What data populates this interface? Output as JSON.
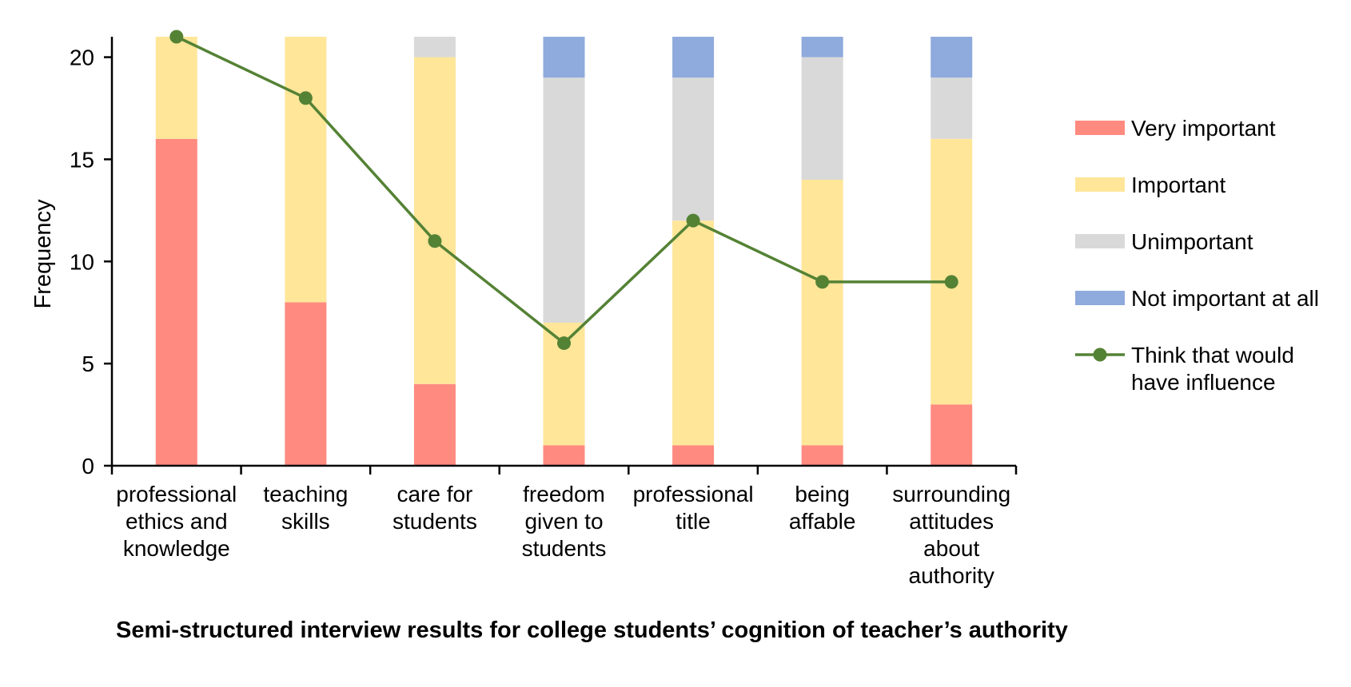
{
  "chart_data": {
    "type": "bar",
    "stacked": true,
    "title": "Semi-structured interview results for college students’ cognition of teacher’s authority",
    "xlabel": "",
    "ylabel": "Frequency",
    "ylim": [
      0,
      21
    ],
    "yticks": [
      0,
      5,
      10,
      15,
      20
    ],
    "grid": false,
    "legend_position": "right",
    "categories": [
      "professional ethics and knowledge",
      "teaching skills",
      "care for students",
      "freedom given to students",
      "professional title",
      "being affable",
      "surrounding attitudes about authority"
    ],
    "series": [
      {
        "name": "Very important",
        "kind": "bar",
        "color": "#FF8A80",
        "values": [
          16,
          8,
          4,
          1,
          1,
          1,
          3
        ]
      },
      {
        "name": "Important",
        "kind": "bar",
        "color": "#FFE699",
        "values": [
          5,
          13,
          16,
          6,
          11,
          13,
          13
        ]
      },
      {
        "name": "Unimportant",
        "kind": "bar",
        "color": "#D9D9D9",
        "values": [
          0,
          0,
          1,
          12,
          7,
          6,
          3
        ]
      },
      {
        "name": "Not important at all",
        "kind": "bar",
        "color": "#8FAADC",
        "values": [
          0,
          0,
          0,
          2,
          2,
          1,
          2
        ]
      },
      {
        "name": "Think that would have influence",
        "kind": "line",
        "color": "#548235",
        "values": [
          21,
          18,
          11,
          6,
          12,
          9,
          9
        ]
      }
    ]
  },
  "labels": {
    "ylabel": "Frequency",
    "caption": "Semi-structured interview results for college students’ cognition of teacher’s authority",
    "yticks": [
      "0",
      "5",
      "10",
      "15",
      "20"
    ],
    "categories": [
      [
        "professional",
        "ethics and",
        "knowledge"
      ],
      [
        "teaching",
        "skills"
      ],
      [
        "care for",
        "students"
      ],
      [
        "freedom",
        "given to",
        "students"
      ],
      [
        "professional",
        "title"
      ],
      [
        "being",
        "affable"
      ],
      [
        "surrounding",
        "attitudes",
        "about",
        "authority"
      ]
    ],
    "legend": [
      [
        "Very important"
      ],
      [
        "Important"
      ],
      [
        "Unimportant"
      ],
      [
        "Not important at all"
      ],
      [
        "Think that would",
        "have influence"
      ]
    ]
  }
}
